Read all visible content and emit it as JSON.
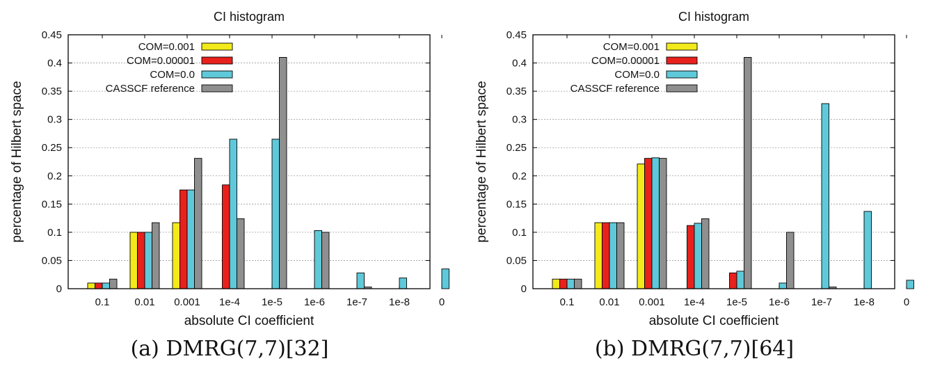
{
  "colors": {
    "com_0_001": "#f2ea1a",
    "com_0_00001": "#e8211c",
    "com_0_0": "#5fc9d9",
    "casscf": "#8f8f8f",
    "frame": "#000000",
    "grid": "#9a9a9a"
  },
  "chart_data": [
    {
      "type": "bar",
      "title": "CI histogram",
      "xlabel": "absolute CI coefficient",
      "ylabel": "percentage of Hilbert space",
      "ylim": [
        0,
        0.45
      ],
      "yticks": [
        "0",
        "0.05",
        "0.1",
        "0.15",
        "0.2",
        "0.25",
        "0.3",
        "0.35",
        "0.4",
        "0.45"
      ],
      "grid": true,
      "legend_position": "top-left",
      "categories": [
        "0.1",
        "0.01",
        "0.001",
        "1e-4",
        "1e-5",
        "1e-6",
        "1e-7",
        "1e-8",
        "0"
      ],
      "series": [
        {
          "name": "COM=0.001",
          "color_key": "com_0_001",
          "values": [
            0.01,
            0.1,
            0.117,
            0,
            0,
            0,
            0,
            0,
            0
          ]
        },
        {
          "name": "COM=0.00001",
          "color_key": "com_0_00001",
          "values": [
            0.01,
            0.1,
            0.175,
            0.184,
            0,
            0,
            0,
            0,
            0
          ]
        },
        {
          "name": "COM=0.0",
          "color_key": "com_0_0",
          "values": [
            0.01,
            0.1,
            0.175,
            0.265,
            0.265,
            0.103,
            0.028,
            0.019,
            0.035
          ]
        },
        {
          "name": "CASSCF reference",
          "color_key": "casscf",
          "values": [
            0.017,
            0.117,
            0.231,
            0.124,
            0.41,
            0.1,
            0.003,
            0,
            0
          ]
        }
      ],
      "caption": "(a) DMRG(7,7)[32]"
    },
    {
      "type": "bar",
      "title": "CI histogram",
      "xlabel": "absolute CI coefficient",
      "ylabel": "percentage of Hilbert space",
      "ylim": [
        0,
        0.45
      ],
      "yticks": [
        "0",
        "0.05",
        "0.1",
        "0.15",
        "0.2",
        "0.25",
        "0.3",
        "0.35",
        "0.4",
        "0.45"
      ],
      "grid": true,
      "legend_position": "top-left",
      "categories": [
        "0.1",
        "0.01",
        "0.001",
        "1e-4",
        "1e-5",
        "1e-6",
        "1e-7",
        "1e-8",
        "0"
      ],
      "series": [
        {
          "name": "COM=0.001",
          "color_key": "com_0_001",
          "values": [
            0.017,
            0.117,
            0.221,
            0,
            0,
            0,
            0,
            0,
            0
          ]
        },
        {
          "name": "COM=0.00001",
          "color_key": "com_0_00001",
          "values": [
            0.017,
            0.117,
            0.231,
            0.112,
            0.028,
            0,
            0,
            0,
            0
          ]
        },
        {
          "name": "COM=0.0",
          "color_key": "com_0_0",
          "values": [
            0.017,
            0.117,
            0.232,
            0.116,
            0.031,
            0.01,
            0.328,
            0.137,
            0.015
          ]
        },
        {
          "name": "CASSCF reference",
          "color_key": "casscf",
          "values": [
            0.017,
            0.117,
            0.231,
            0.124,
            0.41,
            0.1,
            0.003,
            0,
            0
          ]
        }
      ],
      "caption": "(b) DMRG(7,7)[64]"
    }
  ]
}
